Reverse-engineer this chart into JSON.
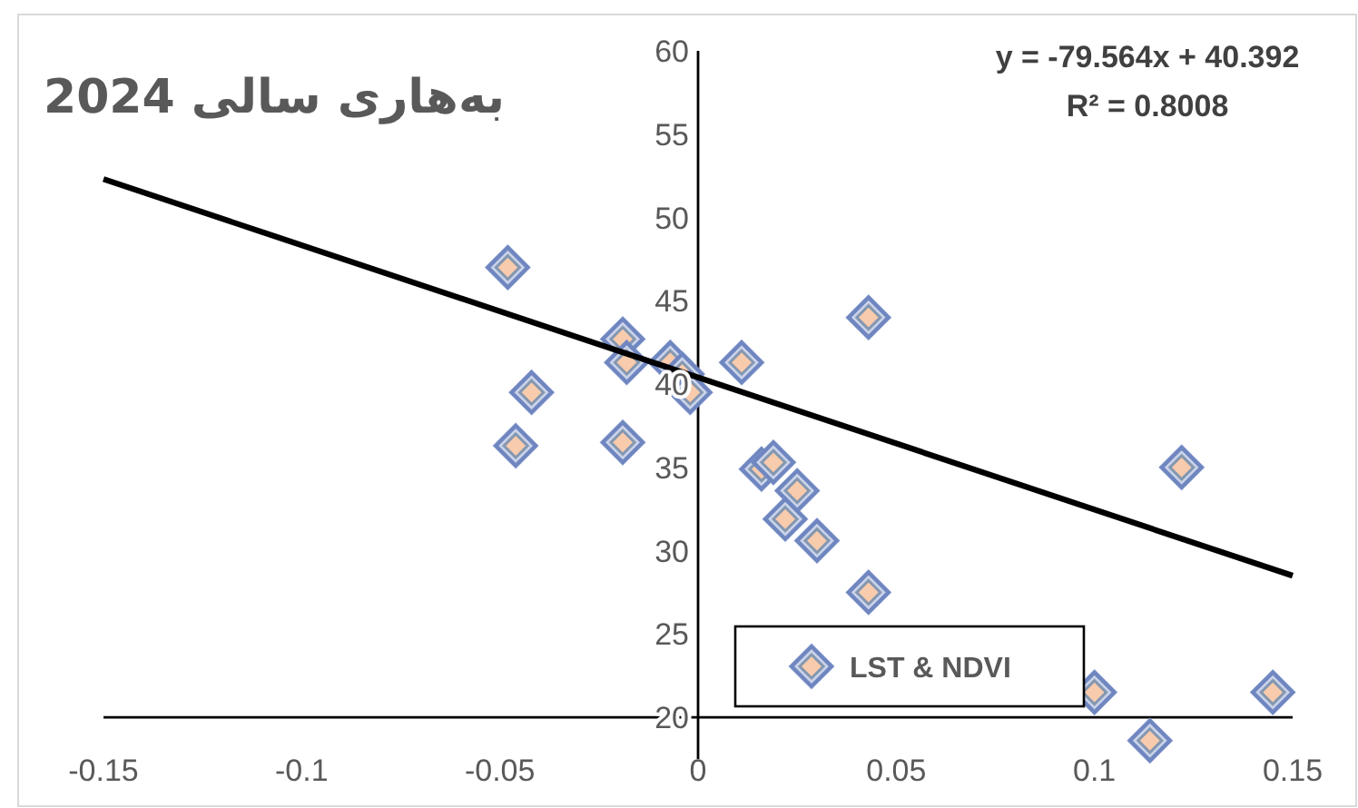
{
  "chart_data": {
    "type": "scatter",
    "title": "بەهاری سالی 2024",
    "annotations": [
      "y = -79.564x + 40.392",
      "R² = 0.8008"
    ],
    "xlim": [
      -0.15,
      0.15
    ],
    "xticks": [
      -0.15,
      -0.1,
      -0.05,
      0,
      0.05,
      0.1,
      0.15
    ],
    "ylim": [
      17.5,
      60
    ],
    "yticks": [
      20,
      25,
      30,
      35,
      40,
      45,
      50,
      55,
      60
    ],
    "grid": false,
    "legend": "bottom",
    "marker": "diamond",
    "series": [
      {
        "name": "LST & NDVI",
        "color": "#f8cbad",
        "x": [
          -0.048,
          -0.046,
          -0.042,
          -0.019,
          -0.018,
          -0.019,
          -0.007,
          -0.004,
          -0.002,
          0.011,
          0.043,
          0.016,
          0.019,
          0.025,
          0.022,
          0.03,
          0.043,
          0.122,
          0.1,
          0.114,
          0.145
        ],
        "values": [
          47.0,
          36.3,
          39.5,
          42.7,
          41.3,
          36.5,
          41.3,
          40.6,
          39.5,
          41.3,
          44.0,
          34.9,
          35.3,
          33.6,
          31.9,
          30.6,
          27.5,
          35.0,
          21.5,
          18.6,
          21.5
        ]
      },
      {
        "type": "line",
        "color": "#000000",
        "x": [
          -0.15,
          0.15
        ],
        "values": [
          52.3,
          28.5
        ],
        "marker": "none",
        "line_style": "solid"
      }
    ]
  }
}
